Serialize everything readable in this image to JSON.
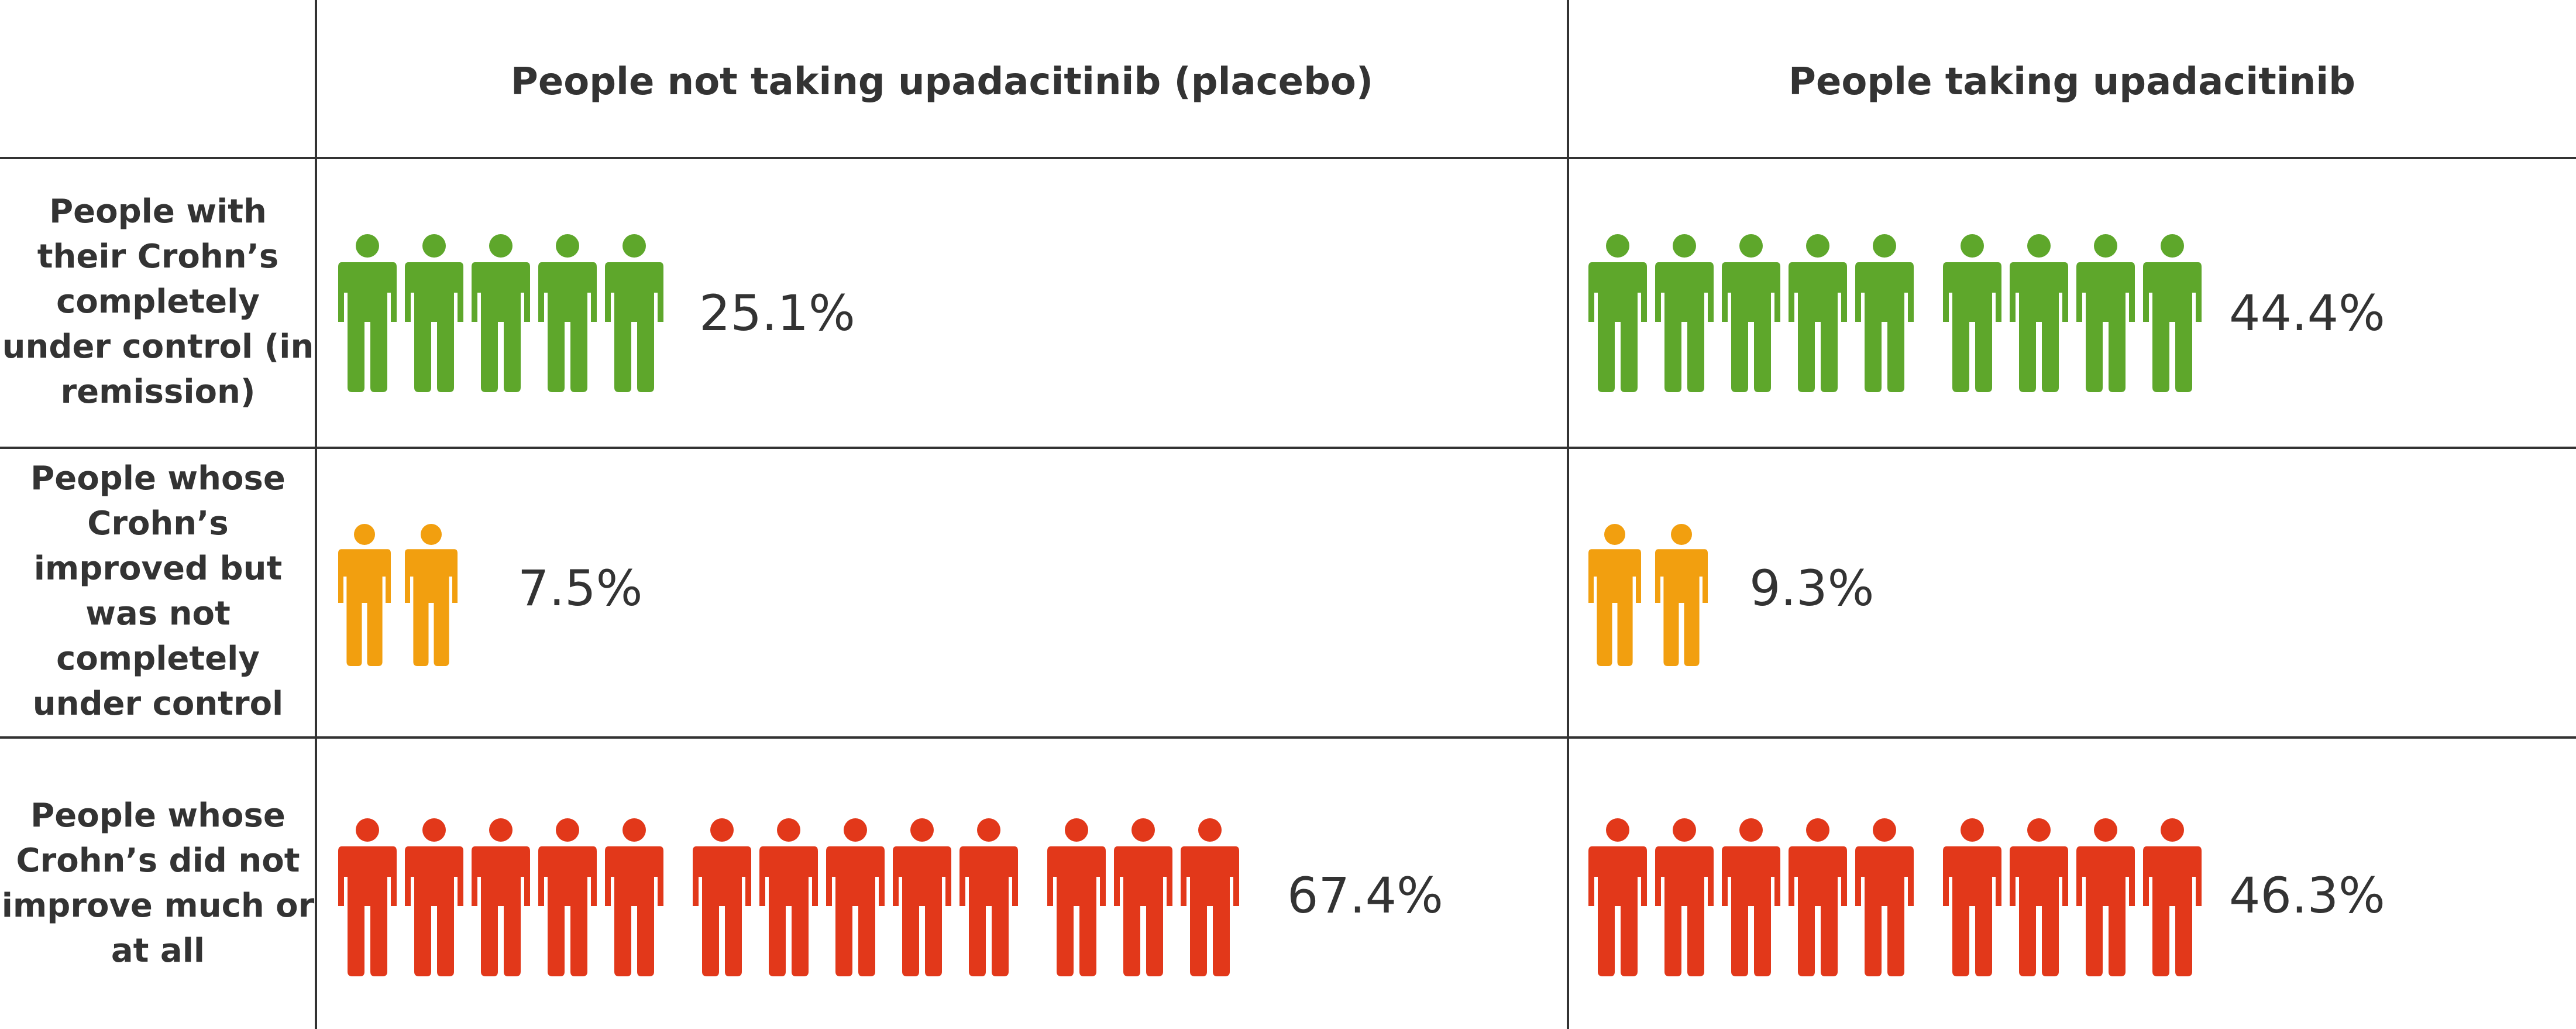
{
  "colors": {
    "remission": "#5ea72b",
    "improved": "#f29f0f",
    "not_improved": "#e2381a",
    "grid": "#333333"
  },
  "icon": "person-icon",
  "chart_data": {
    "type": "table",
    "columns": [
      "People not taking upadacitinib (placebo)",
      "People taking upadacitinib"
    ],
    "rows": [
      {
        "label": "People with their Crohn’s completely under control (in remission)",
        "color_key": "remission",
        "values": [
          25.1,
          44.4
        ],
        "value_labels": [
          "25.1%",
          "44.4%"
        ],
        "icon_counts": [
          5,
          9
        ]
      },
      {
        "label": "People whose Crohn’s improved but was not completely under control",
        "color_key": "improved",
        "values": [
          7.5,
          9.3
        ],
        "value_labels": [
          "7.5%",
          "9.3%"
        ],
        "icon_counts": [
          2,
          2
        ]
      },
      {
        "label": "People whose Crohn’s did not improve much or at all",
        "color_key": "not_improved",
        "values": [
          67.4,
          46.3
        ],
        "value_labels": [
          "67.4%",
          "46.3%"
        ],
        "icon_counts": [
          13,
          9
        ]
      }
    ]
  }
}
